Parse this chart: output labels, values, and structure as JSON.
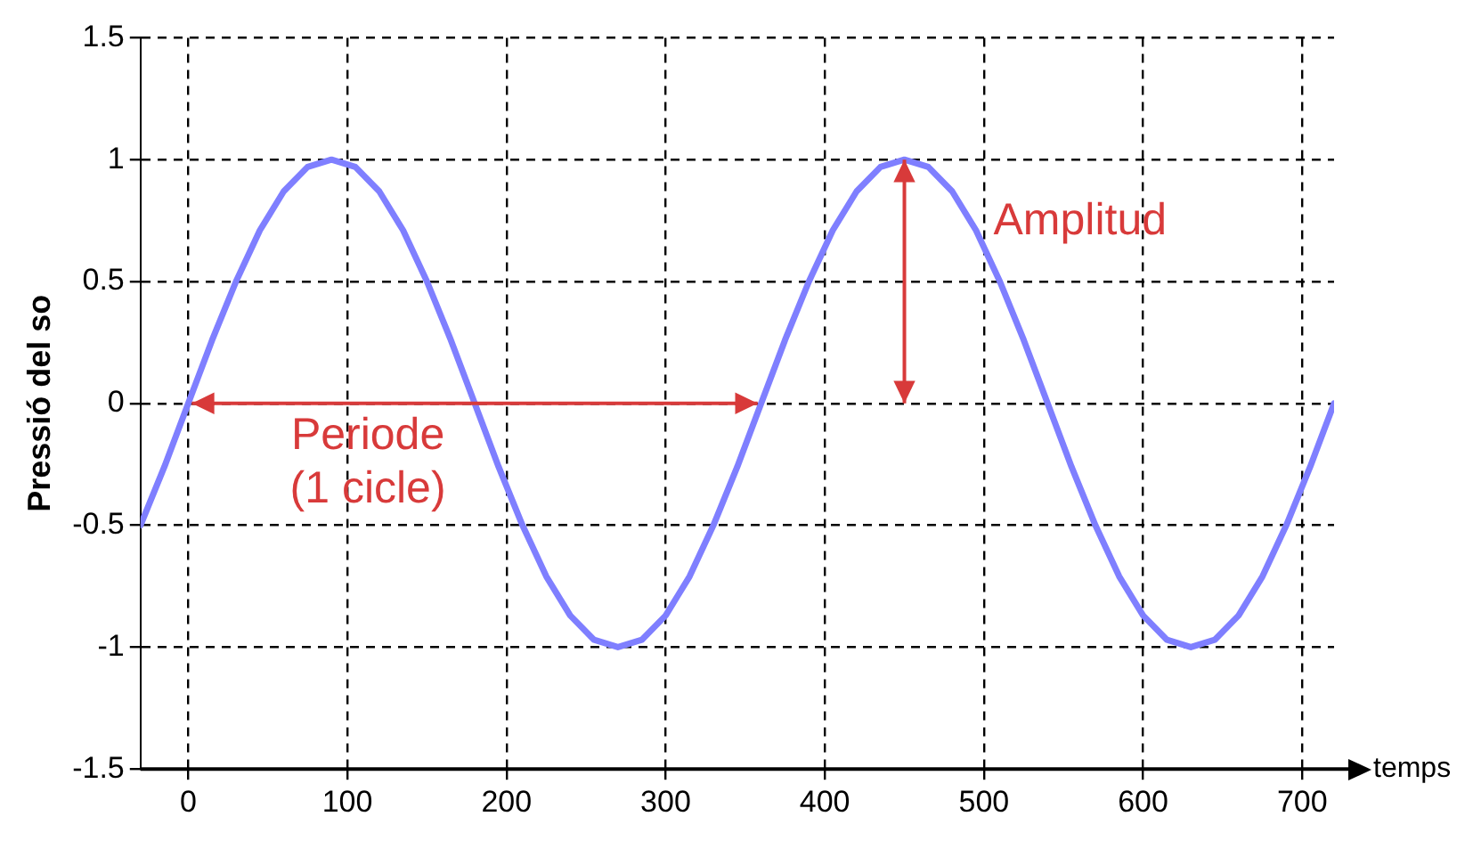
{
  "chart_data": {
    "type": "line",
    "xlabel": "temps",
    "ylabel": "Pressió del so",
    "x": [
      -30,
      -15,
      0,
      15,
      30,
      45,
      60,
      75,
      90,
      105,
      120,
      135,
      150,
      165,
      180,
      195,
      210,
      225,
      240,
      255,
      270,
      285,
      300,
      315,
      330,
      345,
      360,
      375,
      390,
      405,
      420,
      435,
      450,
      465,
      480,
      495,
      510,
      525,
      540,
      555,
      570,
      585,
      600,
      615,
      630,
      645,
      660,
      675,
      690,
      705,
      720
    ],
    "series": [
      {
        "color": "#7f7fff",
        "values": [
          -0.5,
          -0.26,
          0,
          0.26,
          0.5,
          0.71,
          0.87,
          0.97,
          1,
          0.97,
          0.87,
          0.71,
          0.5,
          0.26,
          0,
          -0.26,
          -0.5,
          -0.71,
          -0.87,
          -0.97,
          -1,
          -0.97,
          -0.87,
          -0.71,
          -0.5,
          -0.26,
          0,
          0.26,
          0.5,
          0.71,
          0.87,
          0.97,
          1,
          0.97,
          0.87,
          0.71,
          0.5,
          0.26,
          0,
          -0.26,
          -0.5,
          -0.71,
          -0.87,
          -0.97,
          -1,
          -0.97,
          -0.87,
          -0.71,
          -0.5,
          -0.26,
          0
        ]
      }
    ],
    "xlim": [
      -30,
      720
    ],
    "xticks": [
      0,
      100,
      200,
      300,
      400,
      500,
      600,
      700
    ],
    "ylim": [
      -1.5,
      1.5
    ],
    "yticks": [
      -1.5,
      -1,
      -0.5,
      0,
      0.5,
      1,
      1.5
    ],
    "grid": true,
    "marker": "none",
    "line_style": "solid",
    "legend": false,
    "annotations": [
      {
        "text": "Periode (1 cicle)",
        "x": 180,
        "y": 0
      },
      {
        "text": "Amplitud",
        "x": 450,
        "y": 1
      }
    ]
  }
}
